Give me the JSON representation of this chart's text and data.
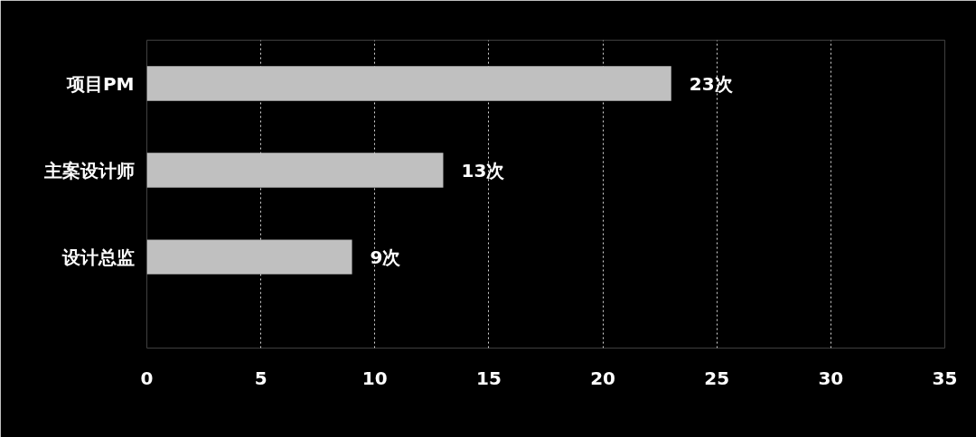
{
  "chart_data": {
    "type": "bar",
    "orientation": "horizontal",
    "categories": [
      "项目PM",
      "主案设计师",
      "设计总监"
    ],
    "values": [
      23,
      13,
      9
    ],
    "value_labels": [
      "23次",
      "13次",
      "9次"
    ],
    "color": "#c0c0c0",
    "xlim": [
      0,
      35
    ],
    "xticks": [
      0,
      5,
      10,
      15,
      20,
      25,
      30,
      35
    ],
    "grid": "x"
  }
}
